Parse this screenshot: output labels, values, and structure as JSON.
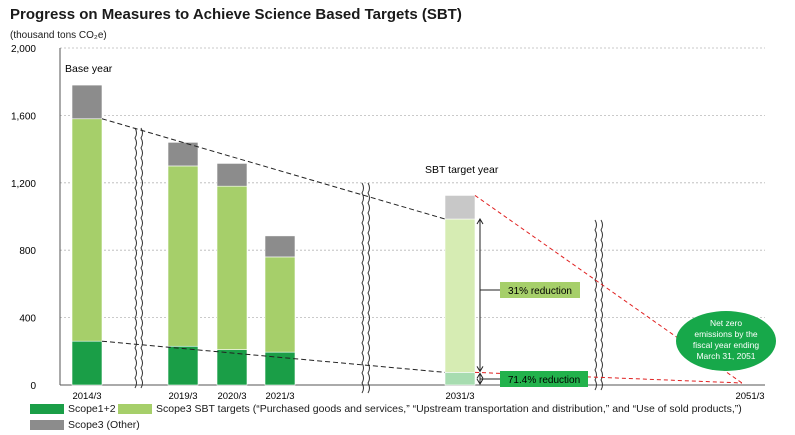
{
  "title": "Progress on Measures to Achieve Science Based Targets (SBT)",
  "unit_label": "(thousand tons CO₂e)",
  "colors": {
    "scope12": "#1a9e47",
    "scope3_sbt": "#a6cf6a",
    "scope3_other": "#8c8c8c",
    "target_scope12": "#a7dcb0",
    "target_scope3_sbt": "#d6ecb3",
    "target_scope3_other": "#c8c8c8",
    "reduction_box": "#a6cf6a",
    "reduction_box2": "#22b24c",
    "net_zero": "#17a84a",
    "net_zero_line": "#e02020"
  },
  "annotations": {
    "base_year": "Base year",
    "sbt_target_year": "SBT target year",
    "reduction_scope3": "31% reduction",
    "reduction_scope12": "71.4% reduction",
    "net_zero": [
      "Net zero",
      "emissions by the",
      "fiscal year ending",
      "March 31, 2051"
    ]
  },
  "legend": {
    "scope12": "Scope1+2",
    "scope3_sbt": "Scope3 SBT targets (“Purchased goods and services,” “Upstream transportation and distribution,” and “Use of sold products,”)",
    "scope3_other": "Scope3 (Other)"
  },
  "chart_data": {
    "type": "bar",
    "stacked": true,
    "categories": [
      "2014/3",
      "2019/3",
      "2020/3",
      "2021/3",
      "2031/3",
      "2051/3"
    ],
    "series": [
      {
        "name": "Scope1+2",
        "values": [
          260,
          230,
          210,
          195,
          75,
          0
        ]
      },
      {
        "name": "Scope3 SBT targets (“Purchased goods and services,” “Upstream transportation and distribution,” and “Use of sold products,”)",
        "values": [
          1320,
          1070,
          970,
          565,
          910,
          0
        ]
      },
      {
        "name": "Scope3 (Other)",
        "values": [
          200,
          140,
          135,
          125,
          140,
          0
        ]
      }
    ],
    "yticks": [
      0,
      400,
      800,
      1200,
      1600,
      2000
    ],
    "ytick_labels": [
      "0",
      "400",
      "800",
      "1,200",
      "1,600",
      "2,000"
    ],
    "ylim": [
      0,
      2000
    ],
    "grid": true
  }
}
